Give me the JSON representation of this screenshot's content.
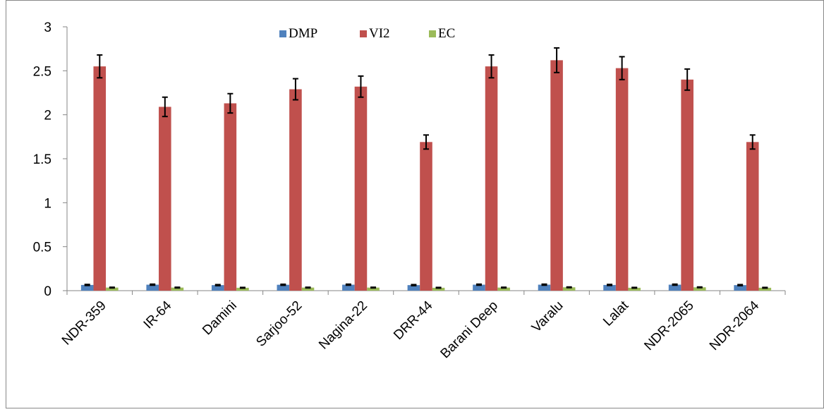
{
  "chart_data": {
    "type": "bar",
    "categories": [
      "NDR-359",
      "IR-64",
      "Damini",
      "Sarjoo-52",
      "Nagina-22",
      "DRR-44",
      "Barani Deep",
      "Varalu",
      "Lalat",
      "NDR-2065",
      "NDR-2064"
    ],
    "series": [
      {
        "name": "DMP",
        "color": "#4f81bd",
        "values": [
          0.065,
          0.068,
          0.063,
          0.067,
          0.068,
          0.063,
          0.068,
          0.068,
          0.065,
          0.068,
          0.063
        ],
        "errors": [
          0.006,
          0.006,
          0.006,
          0.006,
          0.006,
          0.006,
          0.006,
          0.006,
          0.006,
          0.006,
          0.006
        ]
      },
      {
        "name": "VI2",
        "color": "#c0504d",
        "values": [
          2.55,
          2.09,
          2.13,
          2.29,
          2.32,
          1.69,
          2.55,
          2.62,
          2.53,
          2.4,
          1.69
        ],
        "errors": [
          0.13,
          0.11,
          0.11,
          0.12,
          0.12,
          0.08,
          0.13,
          0.14,
          0.13,
          0.12,
          0.08
        ]
      },
      {
        "name": "EC",
        "color": "#9bbb59",
        "values": [
          0.035,
          0.035,
          0.033,
          0.035,
          0.035,
          0.033,
          0.035,
          0.038,
          0.033,
          0.038,
          0.033
        ],
        "errors": [
          0.004,
          0.004,
          0.004,
          0.004,
          0.004,
          0.004,
          0.004,
          0.004,
          0.004,
          0.004,
          0.004
        ]
      }
    ],
    "ylim": [
      0,
      3
    ],
    "yticks": [
      "0",
      "0.5",
      "1",
      "1.5",
      "2",
      "2.5",
      "3"
    ],
    "grid": false,
    "legend_position": "top-center",
    "error_bars": true
  }
}
